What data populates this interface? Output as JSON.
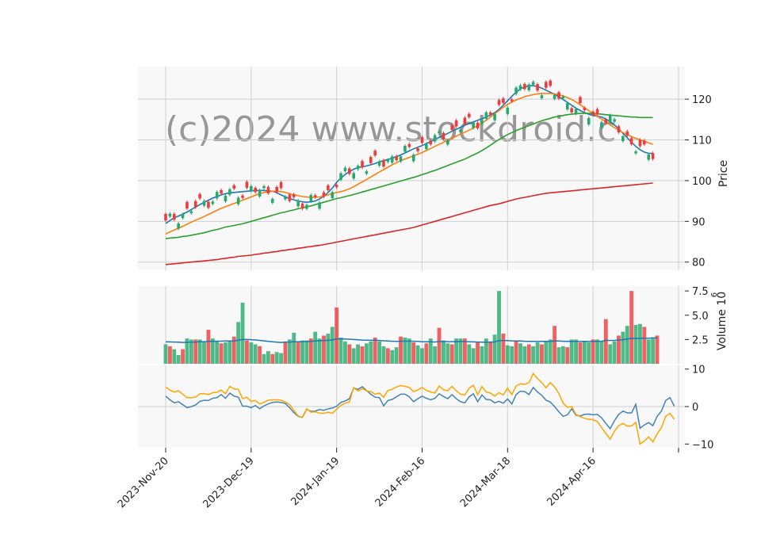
{
  "watermark": "(c)2024 www.stockdroid.c",
  "colors": {
    "up": "#26a96c",
    "down": "#ef3b3b",
    "panel_bg": "#f8f8f8",
    "grid": "#cfcfcf",
    "ma_blue": "#1f77b4",
    "ma_orange": "#ff7f0e",
    "ma_green": "#2ca02c",
    "ma_red": "#d62728",
    "vol_ma": "#1f77b4",
    "osc_line": "#4682b4",
    "osc_signal": "#ffa500"
  },
  "chart_data": [
    {
      "type": "candlestick",
      "panel": "price",
      "ylabel": "Price",
      "ylim": [
        78,
        128
      ],
      "yticks": [
        80,
        90,
        100,
        110,
        120
      ],
      "xticks": [
        "2023-Nov-20",
        "2023-Dec-19",
        "2024-Jan-19",
        "2024-Feb-16",
        "2024-Mar-18",
        "2024-Apr-16"
      ],
      "xtick_index": [
        0,
        20,
        40,
        60,
        80,
        100
      ],
      "grid": true,
      "series": [
        {
          "name": "",
          "color": "ma_blue",
          "values": [
            89.5,
            90.2,
            90.9,
            91.3,
            91.8,
            92.3,
            92.9,
            93.5,
            94.1,
            94.7,
            95.2,
            95.7,
            96.1,
            96.5,
            96.8,
            97.0,
            97.1,
            97.2,
            97.3,
            97.4,
            97.5,
            97.6,
            97.6,
            97.6,
            97.5,
            97.4,
            97.0,
            96.5,
            96.0,
            95.6,
            95.3,
            95.0,
            94.8,
            94.7,
            94.8,
            95.0,
            95.5,
            96.2,
            97.1,
            98.2,
            99.6,
            100.6,
            101.5,
            102.2,
            102.8,
            103.2,
            103.4,
            103.6,
            103.9,
            104.2,
            104.6,
            104.9,
            105.2,
            105.5,
            105.9,
            106.3,
            106.8,
            107.3,
            107.8,
            108.2,
            108.6,
            109.1,
            109.6,
            110.1,
            110.6,
            111.1,
            111.6,
            112.1,
            112.6,
            113.1,
            113.6,
            114.0,
            114.4,
            114.8,
            115.2,
            115.6,
            116.1,
            116.7,
            117.5,
            118.5,
            119.6,
            120.7,
            121.7,
            122.5,
            123.0,
            123.3,
            123.3,
            123.1,
            122.7,
            122.2,
            121.7,
            121.2,
            120.6,
            119.9,
            119.2,
            118.5,
            117.8,
            117.2,
            116.7,
            116.3,
            116.0,
            115.8,
            115.6,
            115.1,
            114.5,
            113.7,
            112.7,
            111.6,
            110.5,
            109.4,
            108.4,
            107.6,
            107.0,
            106.7,
            106.7
          ]
        },
        {
          "name": "",
          "color": "ma_orange",
          "values": [
            86.9,
            87.4,
            87.9,
            88.3,
            88.8,
            89.3,
            89.8,
            90.3,
            90.7,
            91.2,
            91.7,
            92.2,
            92.7,
            93.2,
            93.6,
            94.0,
            94.4,
            94.8,
            95.2,
            95.6,
            96.0,
            96.4,
            96.8,
            97.1,
            97.3,
            97.4,
            97.4,
            97.3,
            97.1,
            96.8,
            96.5,
            96.3,
            96.1,
            96.0,
            95.9,
            95.9,
            96.0,
            96.2,
            96.5,
            96.8,
            97.1,
            97.3,
            97.6,
            98.0,
            98.5,
            99.1,
            99.7,
            100.3,
            100.9,
            101.5,
            102.1,
            102.7,
            103.3,
            103.9,
            104.4,
            104.9,
            105.3,
            105.7,
            106.1,
            106.5,
            106.9,
            107.4,
            107.9,
            108.4,
            108.9,
            109.4,
            109.9,
            110.4,
            110.9,
            111.4,
            111.9,
            112.4,
            112.9,
            113.5,
            114.1,
            114.8,
            115.6,
            116.4,
            117.2,
            118.0,
            118.7,
            119.3,
            119.8,
            120.2,
            120.6,
            120.9,
            121.1,
            121.3,
            121.4,
            121.4,
            121.4,
            121.3,
            121.1,
            120.8,
            120.4,
            119.9,
            119.3,
            118.6,
            117.9,
            117.2,
            116.5,
            115.8,
            115.1,
            114.4,
            113.7,
            113.0,
            112.4,
            111.8,
            111.3,
            110.8,
            110.4,
            110.0,
            109.7,
            109.3,
            108.9
          ]
        },
        {
          "name": "",
          "color": "ma_green",
          "values": [
            85.8,
            85.9,
            86.0,
            86.1,
            86.3,
            86.4,
            86.6,
            86.8,
            87.0,
            87.2,
            87.5,
            87.8,
            88.0,
            88.3,
            88.6,
            88.8,
            89.0,
            89.2,
            89.4,
            89.7,
            90.0,
            90.3,
            90.6,
            90.9,
            91.2,
            91.5,
            91.8,
            92.1,
            92.3,
            92.6,
            92.8,
            93.1,
            93.3,
            93.6,
            93.8,
            94.1,
            94.4,
            94.7,
            95.0,
            95.3,
            95.6,
            95.8,
            96.1,
            96.3,
            96.6,
            96.9,
            97.2,
            97.5,
            97.8,
            98.1,
            98.4,
            98.7,
            99.0,
            99.3,
            99.6,
            99.9,
            100.2,
            100.5,
            100.8,
            101.1,
            101.5,
            101.8,
            102.2,
            102.5,
            102.9,
            103.3,
            103.7,
            104.1,
            104.5,
            104.9,
            105.3,
            105.8,
            106.3,
            106.8,
            107.4,
            108.0,
            108.7,
            109.4,
            110.1,
            110.7,
            111.3,
            111.8,
            112.3,
            112.7,
            113.1,
            113.5,
            113.9,
            114.3,
            114.7,
            115.0,
            115.3,
            115.6,
            115.8,
            116.0,
            116.2,
            116.3,
            116.4,
            116.5,
            116.5,
            116.5,
            116.5,
            116.4,
            116.3,
            116.2,
            116.1,
            116.0,
            115.9,
            115.8,
            115.7,
            115.6,
            115.6,
            115.5,
            115.5,
            115.5,
            115.5
          ]
        },
        {
          "name": "",
          "color": "ma_red",
          "values": [
            79.4,
            79.5,
            79.6,
            79.7,
            79.8,
            79.9,
            80.0,
            80.1,
            80.2,
            80.3,
            80.4,
            80.5,
            80.6,
            80.8,
            80.9,
            81.1,
            81.2,
            81.4,
            81.5,
            81.6,
            81.7,
            81.9,
            82.0,
            82.2,
            82.3,
            82.5,
            82.6,
            82.8,
            82.9,
            83.1,
            83.2,
            83.4,
            83.5,
            83.7,
            83.8,
            84.0,
            84.1,
            84.3,
            84.5,
            84.7,
            84.9,
            85.1,
            85.3,
            85.5,
            85.7,
            85.9,
            86.1,
            86.3,
            86.5,
            86.7,
            86.9,
            87.1,
            87.3,
            87.5,
            87.7,
            87.9,
            88.1,
            88.3,
            88.5,
            88.8,
            89.1,
            89.4,
            89.7,
            90.0,
            90.3,
            90.6,
            90.9,
            91.2,
            91.5,
            91.8,
            92.1,
            92.4,
            92.7,
            93.0,
            93.3,
            93.6,
            93.9,
            94.1,
            94.3,
            94.6,
            94.9,
            95.2,
            95.5,
            95.7,
            95.9,
            96.1,
            96.3,
            96.5,
            96.7,
            96.9,
            97.0,
            97.1,
            97.2,
            97.3,
            97.4,
            97.5,
            97.6,
            97.7,
            97.8,
            97.9,
            98.0,
            98.1,
            98.2,
            98.3,
            98.4,
            98.5,
            98.6,
            98.7,
            98.8,
            98.9,
            99.0,
            99.1,
            99.2,
            99.3,
            99.4
          ]
        }
      ]
    },
    {
      "type": "bar",
      "panel": "volume",
      "ylabel": "Volume  10^6",
      "ylim": [
        0,
        8
      ],
      "yticks": [
        2.5,
        5.0,
        7.5
      ],
      "values": [
        2.0,
        1.8,
        1.5,
        0.9,
        1.5,
        2.6,
        2.5,
        2.5,
        2.5,
        2.2,
        3.5,
        2.6,
        2.3,
        2.1,
        2.2,
        2.3,
        2.8,
        4.3,
        6.3,
        2.4,
        2.2,
        2.0,
        1.8,
        1.0,
        1.3,
        1.0,
        1.2,
        1.1,
        2.3,
        2.5,
        3.2,
        2.2,
        2.4,
        2.4,
        2.6,
        3.3,
        2.6,
        2.9,
        3.1,
        3.8,
        5.8,
        2.7,
        2.3,
        2.0,
        1.6,
        2.0,
        1.8,
        2.1,
        2.3,
        2.7,
        2.3,
        1.8,
        1.6,
        1.4,
        1.7,
        2.8,
        2.7,
        2.6,
        2.2,
        1.9,
        1.6,
        2.1,
        2.6,
        1.8,
        3.7,
        2.4,
        2.1,
        2.0,
        2.6,
        2.6,
        2.6,
        2.0,
        1.6,
        2.2,
        1.8,
        2.6,
        2.3,
        3.0,
        7.5,
        3.1,
        1.9,
        1.8,
        2.4,
        2.1,
        1.8,
        2.0,
        1.8,
        2.2,
        2.0,
        2.3,
        2.5,
        3.9,
        1.7,
        1.8,
        1.7,
        2.5,
        2.5,
        2.2,
        2.3,
        2.2,
        2.5,
        2.5,
        2.3,
        4.6,
        2.0,
        2.3,
        2.9,
        3.3,
        3.9,
        7.5,
        4.0,
        4.1,
        3.8,
        2.5,
        2.6,
        2.9
      ],
      "vol_ma": [
        2.25,
        2.25,
        2.24,
        2.22,
        2.2,
        2.21,
        2.22,
        2.24,
        2.26,
        2.26,
        2.3,
        2.32,
        2.33,
        2.33,
        2.34,
        2.34,
        2.35,
        2.42,
        2.5,
        2.5,
        2.48,
        2.45,
        2.41,
        2.36,
        2.3,
        2.26,
        2.23,
        2.2,
        2.22,
        2.24,
        2.27,
        2.27,
        2.28,
        2.29,
        2.31,
        2.35,
        2.37,
        2.39,
        2.42,
        2.46,
        2.56,
        2.56,
        2.55,
        2.53,
        2.5,
        2.47,
        2.44,
        2.43,
        2.42,
        2.43,
        2.4,
        2.37,
        2.35,
        2.32,
        2.3,
        2.33,
        2.33,
        2.33,
        2.32,
        2.3,
        2.27,
        2.26,
        2.27,
        2.24,
        2.29,
        2.29,
        2.28,
        2.28,
        2.28,
        2.29,
        2.29,
        2.27,
        2.25,
        2.24,
        2.22,
        2.23,
        2.23,
        2.25,
        2.38,
        2.4,
        2.38,
        2.36,
        2.35,
        2.34,
        2.32,
        2.31,
        2.3,
        2.3,
        2.3,
        2.3,
        2.31,
        2.36,
        2.34,
        2.32,
        2.3,
        2.3,
        2.31,
        2.3,
        2.3,
        2.3,
        2.31,
        2.32,
        2.32,
        2.42,
        2.4,
        2.41,
        2.44,
        2.48,
        2.55,
        2.62,
        2.6,
        2.62,
        2.64,
        2.64,
        2.66,
        2.68
      ]
    },
    {
      "type": "line",
      "panel": "oscillator",
      "ylim": [
        -11,
        11
      ],
      "yticks": [
        -10,
        0,
        10
      ],
      "series": [
        {
          "name": "",
          "color": "osc_line",
          "values": [
            2.8,
            1.8,
            1.0,
            1.3,
            0.5,
            -0.3,
            0.0,
            0.4,
            1.4,
            1.7,
            1.6,
            2.2,
            2.4,
            3.2,
            2.2,
            3.6,
            2.8,
            2.5,
            0.1,
            0.1,
            -0.3,
            0.3,
            -0.6,
            0.2,
            0.7,
            1.1,
            1.2,
            1.1,
            0.8,
            -0.3,
            -1.6,
            -2.6,
            -2.9,
            -0.7,
            -1.3,
            -1.2,
            -0.8,
            -1.0,
            -0.6,
            -0.4,
            0.1,
            1.1,
            1.5,
            2.1,
            5.0,
            4.6,
            5.3,
            4.3,
            3.3,
            2.5,
            2.4,
            0.2,
            1.6,
            1.9,
            2.6,
            3.3,
            3.3,
            2.6,
            1.3,
            2.1,
            2.8,
            2.2,
            1.8,
            2.2,
            3.4,
            2.7,
            2.1,
            3.2,
            2.1,
            1.3,
            1.0,
            2.6,
            3.4,
            1.3,
            3.1,
            1.9,
            1.8,
            1.0,
            1.4,
            0.9,
            2.0,
            0.7,
            3.2,
            4.1,
            4.0,
            3.2,
            5.1,
            3.9,
            3.0,
            1.7,
            1.2,
            0.0,
            -1.4,
            -2.6,
            -2.2,
            -0.6,
            -2.3,
            -2.5,
            -2.1,
            -2.0,
            -2.2,
            -2.1,
            -3.0,
            -4.5,
            -5.9,
            -3.8,
            -2.1,
            -1.2,
            -1.7,
            -1.7,
            0.6,
            -5.8,
            -4.9,
            -4.3,
            -5.1,
            -2.6,
            -1.2,
            1.6,
            2.4,
            0.1
          ]
        },
        {
          "name": "",
          "color": "osc_signal",
          "values": [
            5.2,
            4.4,
            3.9,
            4.2,
            3.3,
            2.4,
            2.4,
            2.5,
            3.4,
            3.5,
            3.2,
            3.7,
            3.8,
            4.4,
            3.4,
            5.4,
            4.7,
            4.6,
            2.1,
            2.5,
            1.4,
            1.6,
            0.7,
            1.1,
            1.7,
            1.8,
            1.8,
            1.7,
            1.2,
            0.5,
            -1.0,
            -2.5,
            -2.9,
            -0.6,
            -1.5,
            -1.4,
            -1.8,
            -1.8,
            -1.5,
            -1.8,
            -0.7,
            0.3,
            0.9,
            1.2,
            5.1,
            4.1,
            4.8,
            4.2,
            4.0,
            3.3,
            3.6,
            2.5,
            4.3,
            4.6,
            5.2,
            5.6,
            5.4,
            5.1,
            4.0,
            4.4,
            5.1,
            4.3,
            3.9,
            3.6,
            5.5,
            4.5,
            4.2,
            5.4,
            4.2,
            3.3,
            3.1,
            4.9,
            5.7,
            3.2,
            5.3,
            3.9,
            3.6,
            2.8,
            3.7,
            3.1,
            4.9,
            3.2,
            5.5,
            6.1,
            5.9,
            6.4,
            8.8,
            7.5,
            6.4,
            5.0,
            6.4,
            5.2,
            3.5,
            0.9,
            -0.2,
            0.0,
            -2.1,
            -2.7,
            -3.1,
            -3.4,
            -3.5,
            -4.0,
            -5.6,
            -7.2,
            -8.7,
            -6.6,
            -5.1,
            -4.5,
            -5.2,
            -5.2,
            -4.2,
            -10.0,
            -9.2,
            -8.1,
            -9.4,
            -7.3,
            -5.6,
            -2.6,
            -1.8,
            -3.4
          ]
        }
      ]
    }
  ]
}
